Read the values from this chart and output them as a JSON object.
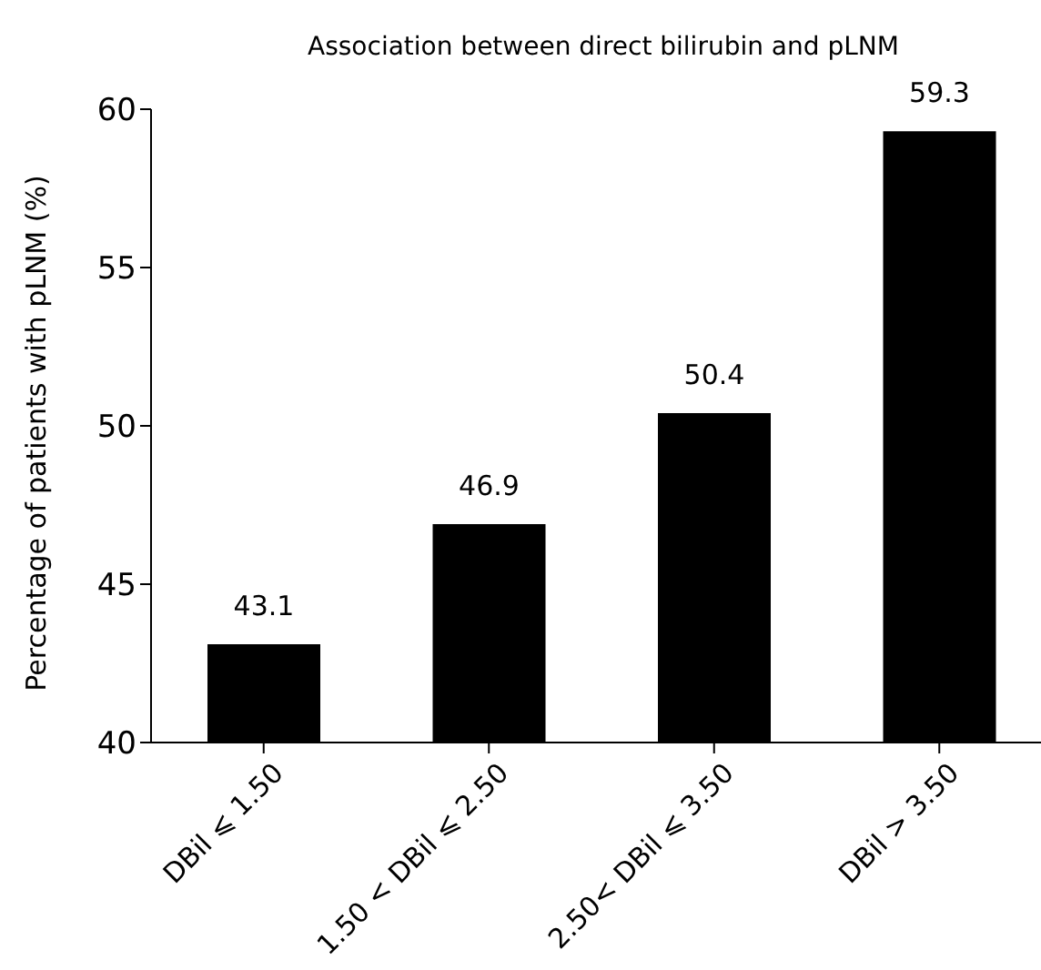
{
  "chart_data": {
    "type": "bar",
    "title": "Association between direct bilirubin and pLNM",
    "ylabel": "Percentage of patients with pLNM (%)",
    "categories": [
      "DBil ⩽ 1.50",
      "1.50 < DBil ⩽ 2.50",
      "2.50< DBil ⩽ 3.50",
      "DBil > 3.50"
    ],
    "values": [
      43.1,
      46.9,
      50.4,
      59.3
    ],
    "color": "#000000",
    "data_labels": true,
    "ylim": [
      40,
      60
    ],
    "yticks": [
      40,
      45,
      50,
      55,
      60
    ],
    "grid": false,
    "legend": false
  }
}
